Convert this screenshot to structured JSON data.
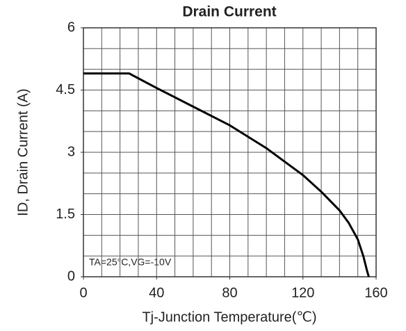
{
  "chart_data": {
    "type": "line",
    "title": "Drain Current",
    "x_label": "Tj-Junction Temperature(℃)",
    "y_label": "ID, Drain Current (A)",
    "annotation": "TA=25°C,VG=-10V",
    "x": [
      0,
      25,
      40,
      60,
      80,
      100,
      120,
      130,
      140,
      145,
      150,
      153,
      155,
      156
    ],
    "series": [
      {
        "name": "ID",
        "color": "#000000",
        "values": [
          4.9,
          4.9,
          4.55,
          4.1,
          3.65,
          3.1,
          2.45,
          2.05,
          1.6,
          1.3,
          0.9,
          0.5,
          0.15,
          0
        ]
      }
    ],
    "xlim": [
      0,
      160
    ],
    "xticks": [
      0,
      40,
      80,
      120,
      160
    ],
    "ylim": [
      0,
      6
    ],
    "yticks": [
      0,
      1.5,
      3,
      4.5,
      6
    ],
    "grid": {
      "x_step": 10,
      "y_step": 0.5
    }
  }
}
